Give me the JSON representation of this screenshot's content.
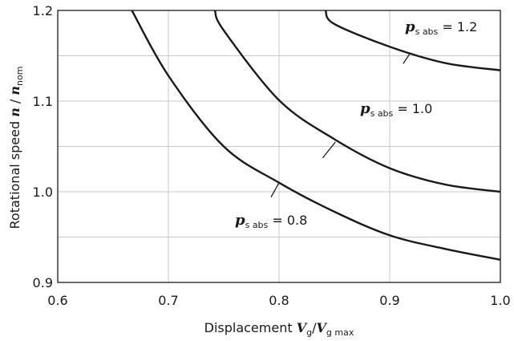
{
  "chart_data": {
    "type": "line",
    "title": "",
    "xlabel": {
      "prefix": "Displacement ",
      "var1": "V",
      "sub1": "g",
      "slash": "/",
      "var2": "V",
      "sub2": "g max"
    },
    "ylabel": {
      "prefix": "Rotational speed ",
      "var1": "n",
      "slash": " / ",
      "var2": "n",
      "sub2": "nom"
    },
    "xlim": [
      0.6,
      1.0
    ],
    "ylim": [
      0.9,
      1.2
    ],
    "xticks": [
      0.6,
      0.7,
      0.8,
      0.9,
      1.0
    ],
    "yticks": [
      0.9,
      1.0,
      1.1,
      1.2
    ],
    "xtick_labels": [
      "0.6",
      "0.7",
      "0.8",
      "0.9",
      "1.0"
    ],
    "ytick_labels": [
      "0.9",
      "1.0",
      "1.1",
      "1.2"
    ],
    "grid": true,
    "series": [
      {
        "name": "0.8",
        "label_var": "p",
        "label_sub": "s abs",
        "label_eq": " = ",
        "x": [
          0.667,
          0.7,
          0.75,
          0.8,
          0.85,
          0.9,
          0.95,
          1.0
        ],
        "y": [
          1.2,
          1.128,
          1.05,
          1.01,
          0.978,
          0.952,
          0.937,
          0.925
        ],
        "label_at": [
          0.8,
          1.01
        ]
      },
      {
        "name": "1.0",
        "label_var": "p",
        "label_sub": "s abs",
        "label_eq": " = ",
        "x": [
          0.742,
          0.75,
          0.8,
          0.85,
          0.9,
          0.95,
          1.0
        ],
        "y": [
          1.2,
          1.178,
          1.101,
          1.058,
          1.026,
          1.008,
          1.0
        ],
        "label_at": [
          0.851,
          1.055
        ]
      },
      {
        "name": "1.2",
        "label_var": "p",
        "label_sub": "s abs",
        "label_eq": " = ",
        "x": [
          0.842,
          0.85,
          0.9,
          0.95,
          1.0
        ],
        "y": [
          1.2,
          1.185,
          1.16,
          1.142,
          1.134
        ],
        "label_at": [
          0.918,
          1.152
        ]
      }
    ]
  }
}
